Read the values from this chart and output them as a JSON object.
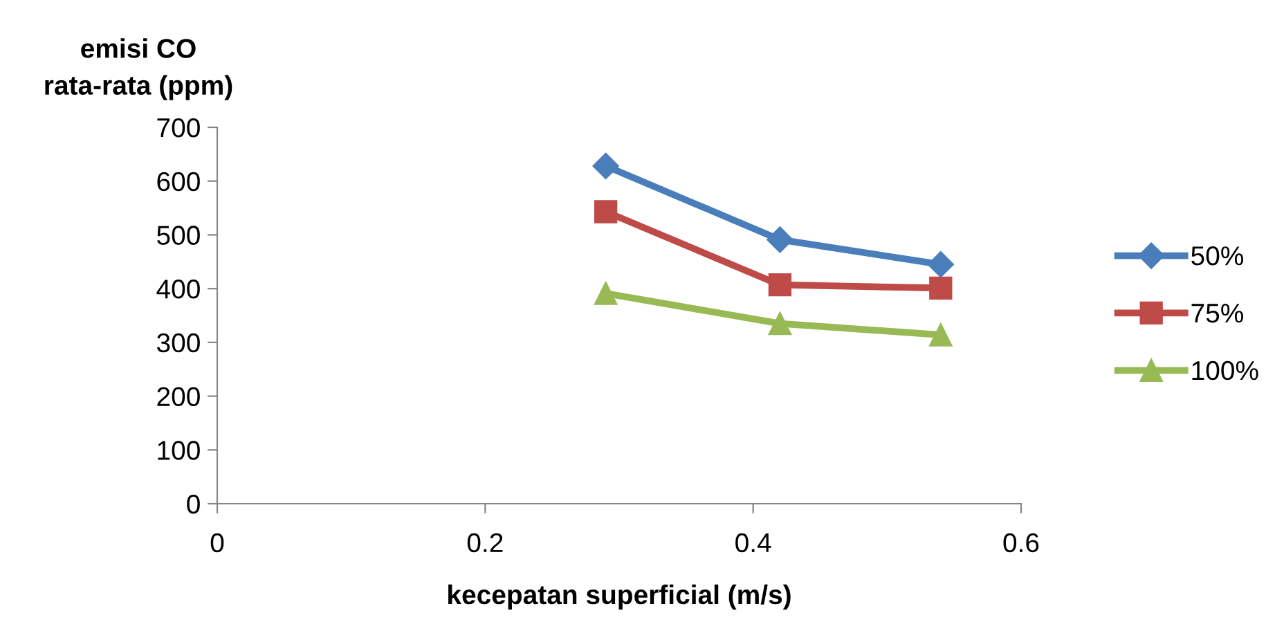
{
  "chart_data": {
    "type": "line",
    "xlabel": "kecepatan superficial (m/s)",
    "ylabel": "emisi CO\nrata-rata (ppm)",
    "x": [
      0.29,
      0.42,
      0.54
    ],
    "series": [
      {
        "name": "50%",
        "color": "#4a7ebb",
        "marker": "diamond",
        "values": [
          628,
          491,
          445
        ]
      },
      {
        "name": "75%",
        "color": "#be4b48",
        "marker": "square",
        "values": [
          543,
          407,
          401
        ]
      },
      {
        "name": "100%",
        "color": "#98b954",
        "marker": "triangle",
        "values": [
          391,
          335,
          314
        ]
      }
    ],
    "xlim": [
      0,
      0.6
    ],
    "xticks": [
      0,
      0.2,
      0.4,
      0.6
    ],
    "ylim": [
      0,
      700
    ],
    "yticks": [
      0,
      100,
      200,
      300,
      400,
      500,
      600,
      700
    ],
    "grid": false,
    "legend": "right",
    "line_style": "solid"
  }
}
